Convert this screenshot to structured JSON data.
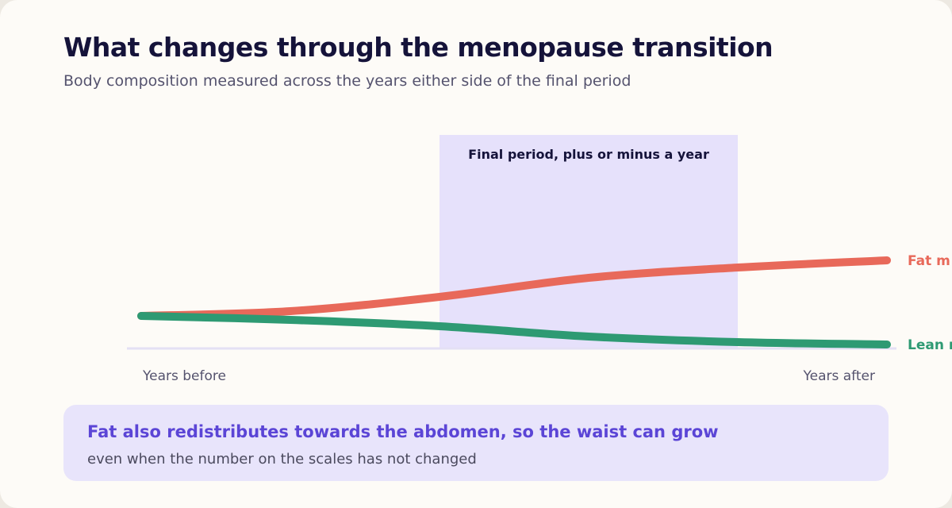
{
  "title": "What changes through the menopause transition",
  "subtitle": "Body composition measured across the years either side of the final period",
  "colors": {
    "fat": "#e8695a",
    "lean": "#2e9a73",
    "band": "#e6e1fb",
    "baseline": "#e4e0f4",
    "title": "#15133a"
  },
  "chart_data": {
    "type": "line",
    "title": "What changes through the menopause transition",
    "subtitle": "Body composition measured across the years either side of the final period",
    "x": [
      0,
      1,
      2,
      3,
      4,
      5
    ],
    "xtick_labels": {
      "start": "Years before",
      "end": "Years after"
    },
    "series": [
      {
        "name": "Fat mass",
        "label_visible": "Fat m",
        "color": "#e8695a",
        "values": [
          0,
          0.06,
          0.24,
          0.48,
          0.61,
          0.7
        ]
      },
      {
        "name": "Lean mass",
        "label_visible": "Lean m",
        "color": "#2e9a73",
        "values": [
          0,
          -0.05,
          -0.13,
          -0.26,
          -0.33,
          -0.36
        ]
      }
    ],
    "highlight_band": {
      "x_range": [
        2,
        4
      ],
      "label": "Final period, plus or minus a year"
    },
    "ylim": [
      -0.5,
      1.2
    ],
    "grid": false,
    "legend": "direct labels at line ends (right)"
  },
  "callout": {
    "headline": "Fat also redistributes towards the abdomen, so the waist can grow",
    "subtext": "even when the number on the scales has not changed"
  }
}
